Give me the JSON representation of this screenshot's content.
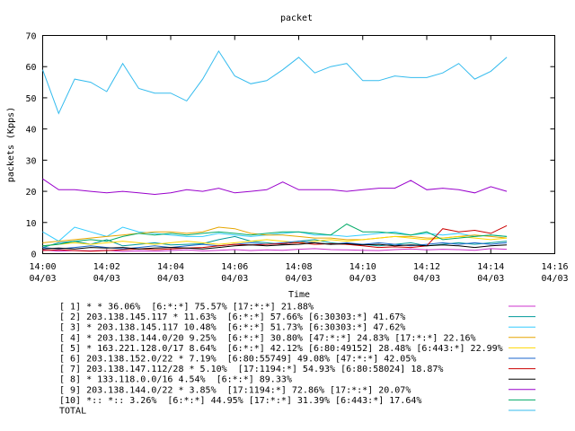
{
  "chart_data": {
    "type": "line",
    "title": "packet",
    "xlabel": "Time",
    "ylabel": "packets (Kpps)",
    "ylim": [
      0,
      70
    ],
    "xlim": [
      "14:00",
      "14:16"
    ],
    "y_ticks": [
      "0",
      "10",
      "20",
      "30",
      "40",
      "50",
      "60",
      "70"
    ],
    "x_ticks": [
      {
        "time": "14:00",
        "date": "04/03"
      },
      {
        "time": "14:02",
        "date": "04/03"
      },
      {
        "time": "14:04",
        "date": "04/03"
      },
      {
        "time": "14:06",
        "date": "04/03"
      },
      {
        "time": "14:08",
        "date": "04/03"
      },
      {
        "time": "14:10",
        "date": "04/03"
      },
      {
        "time": "14:12",
        "date": "04/03"
      },
      {
        "time": "14:14",
        "date": "04/03"
      },
      {
        "time": "14:16",
        "date": "04/03"
      }
    ],
    "grid": false,
    "legend_position": "bottom",
    "x": [
      "14:00:00",
      "14:00:30",
      "14:01:00",
      "14:01:30",
      "14:02:00",
      "14:02:30",
      "14:03:00",
      "14:03:30",
      "14:04:00",
      "14:04:30",
      "14:05:00",
      "14:05:30",
      "14:06:00",
      "14:06:30",
      "14:07:00",
      "14:07:30",
      "14:08:00",
      "14:08:30",
      "14:09:00",
      "14:09:30",
      "14:10:00",
      "14:10:30",
      "14:11:00",
      "14:11:30",
      "14:12:00",
      "14:12:30",
      "14:13:00",
      "14:13:30",
      "14:14:00",
      "14:14:30"
    ],
    "series": [
      {
        "name": "[ 1] * * 36.06%  [6:*:*] 75.57% [17:*:*] 21.88%",
        "color": "#cc33cc",
        "values": [
          1.2,
          0.8,
          1.0,
          0.9,
          1.1,
          0.7,
          0.9,
          0.8,
          1.0,
          1.2,
          0.9,
          1.1,
          1.3,
          1.0,
          1.2,
          1.1,
          1.4,
          1.6,
          1.3,
          1.2,
          1.1,
          1.0,
          1.3,
          1.5,
          1.2,
          1.4,
          1.3,
          1.1,
          1.6,
          1.4
        ]
      },
      {
        "name": "[ 2] 203.138.145.117 * 11.63%  [6:*:*] 57.66% [6:30303:*] 41.67%",
        "color": "#009999",
        "values": [
          2.0,
          3.5,
          4.0,
          3.0,
          4.5,
          2.5,
          3.0,
          3.5,
          2.8,
          3.0,
          3.2,
          4.5,
          5.5,
          4.0,
          3.5,
          3.0,
          4.0,
          4.5,
          3.5,
          3.0,
          3.0,
          2.5,
          3.0,
          3.5,
          2.5,
          3.0,
          3.5,
          3.0,
          3.5,
          4.0
        ]
      },
      {
        "name": "[ 3] * 203.138.145.117 10.48%  [6:*:*] 51.73% [6:30303:*] 47.62%",
        "color": "#33ccff",
        "values": [
          7.0,
          4.0,
          8.5,
          7.0,
          5.5,
          8.5,
          7.0,
          6.5,
          6.0,
          5.5,
          5.5,
          6.5,
          6.0,
          5.5,
          6.0,
          6.5,
          7.0,
          6.0,
          6.0,
          5.5,
          6.0,
          6.5,
          7.0,
          6.0,
          6.5,
          6.0,
          6.5,
          5.5,
          6.0,
          5.5
        ]
      },
      {
        "name": "[ 4] * 203.138.144.0/20 9.25%  [6:*:*] 30.80% [47:*:*] 24.83% [17:*:*] 22.16%",
        "color": "#e6a600",
        "values": [
          3.5,
          4.0,
          4.5,
          5.0,
          5.5,
          6.0,
          6.5,
          7.0,
          7.0,
          6.5,
          7.0,
          8.5,
          8.0,
          6.5,
          6.0,
          6.0,
          5.5,
          5.0,
          5.0,
          4.5,
          4.5,
          5.0,
          5.5,
          5.5,
          5.0,
          5.0,
          5.5,
          6.0,
          5.5,
          5.0
        ]
      },
      {
        "name": "[ 5] * 163.221.128.0/17 8.64%  [6:*:*] 42.12% [6:80:49152] 28.48% [6:443:*] 22.99%",
        "color": "#ffd700",
        "values": [
          2.5,
          3.0,
          3.5,
          3.0,
          3.5,
          4.0,
          3.5,
          3.0,
          3.5,
          4.0,
          3.5,
          3.0,
          3.5,
          4.0,
          4.5,
          4.0,
          3.5,
          4.0,
          4.5,
          4.0,
          4.5,
          5.0,
          5.5,
          5.0,
          4.5,
          5.0,
          5.5,
          5.0,
          4.5,
          5.0
        ]
      },
      {
        "name": "[ 6] 203.138.152.0/22 * 7.19%  [6:80:55749] 49.08% [47:*:*] 42.05%",
        "color": "#1a66cc",
        "values": [
          2.0,
          1.5,
          2.0,
          2.5,
          2.0,
          1.5,
          2.0,
          2.5,
          2.0,
          2.5,
          3.0,
          2.5,
          3.0,
          3.5,
          3.0,
          3.5,
          4.0,
          3.5,
          3.0,
          3.5,
          3.0,
          3.5,
          3.0,
          2.5,
          3.0,
          3.5,
          3.0,
          3.5,
          3.0,
          3.5
        ]
      },
      {
        "name": "[ 7] 203.138.147.112/28 * 5.10%  [17:1194:*] 54.93% [6:80:58024] 18.87%",
        "color": "#cc0000",
        "values": [
          1.0,
          1.2,
          1.0,
          0.8,
          1.0,
          1.2,
          1.5,
          1.3,
          1.5,
          1.8,
          2.0,
          2.5,
          3.0,
          2.8,
          3.0,
          3.2,
          3.5,
          3.0,
          3.2,
          3.0,
          2.5,
          2.0,
          2.2,
          2.0,
          2.5,
          8.0,
          7.0,
          7.5,
          6.5,
          9.0
        ]
      },
      {
        "name": "[ 8] * 133.118.0.0/16 4.54%  [6:*:*] 89.33%",
        "color": "#000000",
        "values": [
          1.5,
          1.8,
          1.5,
          2.0,
          1.8,
          2.0,
          1.5,
          1.8,
          2.0,
          1.8,
          1.5,
          2.0,
          2.5,
          2.8,
          2.5,
          2.8,
          3.0,
          3.5,
          3.0,
          3.2,
          2.8,
          3.0,
          2.5,
          2.8,
          2.5,
          2.8,
          2.5,
          2.0,
          2.5,
          2.8
        ]
      },
      {
        "name": "[ 9] 203.138.144.0/22 * 3.85%  [17:1194:*] 72.86% [17:*:*] 20.07%",
        "color": "#9900cc",
        "values": [
          24.0,
          20.5,
          20.5,
          20.0,
          19.5,
          20.0,
          19.5,
          19.0,
          19.5,
          20.5,
          20.0,
          21.0,
          19.5,
          20.0,
          20.5,
          23.0,
          20.5,
          20.5,
          20.5,
          20.0,
          20.5,
          21.0,
          21.0,
          23.5,
          20.5,
          21.0,
          20.5,
          19.5,
          21.5,
          20.0
        ]
      },
      {
        "name": "[10] *:: *:: 3.26%  [6:*:*] 44.95% [17:*:*] 31.39% [6:443:*] 17.64%",
        "color": "#00aa66",
        "values": [
          2.5,
          3.0,
          4.0,
          4.5,
          4.0,
          5.5,
          6.5,
          6.0,
          6.5,
          6.0,
          6.5,
          7.0,
          6.5,
          6.0,
          6.5,
          7.0,
          7.0,
          6.5,
          6.0,
          9.5,
          7.0,
          7.0,
          6.5,
          6.0,
          7.0,
          4.5,
          5.0,
          5.5,
          6.0,
          5.5
        ]
      },
      {
        "name": "TOTAL",
        "color": "#33bbee",
        "values": [
          59.0,
          45.0,
          56.0,
          55.0,
          52.0,
          61.0,
          53.0,
          51.5,
          51.5,
          49.0,
          56.0,
          65.0,
          57.0,
          54.5,
          55.5,
          59.0,
          63.0,
          58.0,
          60.0,
          61.0,
          55.5,
          55.5,
          57.0,
          56.5,
          56.5,
          58.0,
          61.0,
          56.0,
          58.5,
          63.0
        ]
      }
    ]
  }
}
